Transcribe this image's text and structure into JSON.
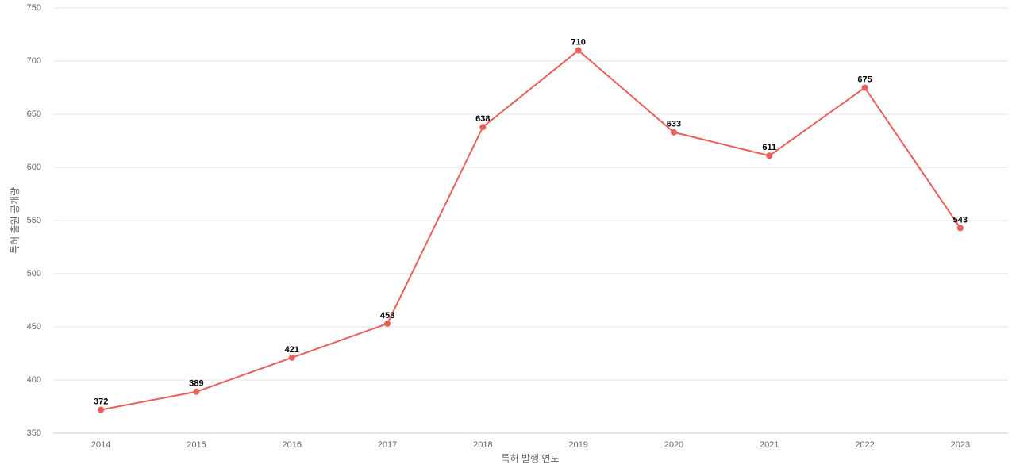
{
  "chart_data": {
    "type": "line",
    "x_label": "특허 발행 연도",
    "y_label": "특허 출원 공개량",
    "categories": [
      "2014",
      "2015",
      "2016",
      "2017",
      "2018",
      "2019",
      "2020",
      "2021",
      "2022",
      "2023"
    ],
    "series": [
      {
        "name": "특허 출원 공개량",
        "color": "#e8605c",
        "values": [
          372,
          389,
          421,
          453,
          638,
          710,
          633,
          611,
          675,
          543
        ]
      }
    ],
    "ylim": [
      350,
      750
    ],
    "yticks": [
      350,
      400,
      450,
      500,
      550,
      600,
      650,
      700,
      750
    ],
    "grid": true
  }
}
